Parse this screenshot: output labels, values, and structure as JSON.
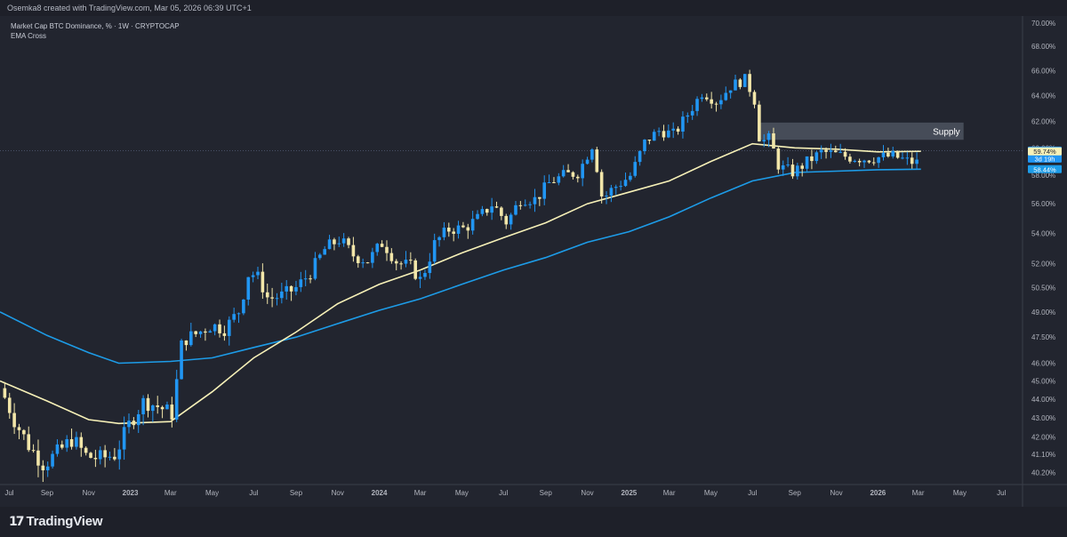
{
  "credit": "Osemka8 created with TradingView.com, Mar 05, 2026 06:39 UTC+1",
  "legend": {
    "symbol": "Market Cap BTC Dominance, % · 1W · CRYPTOCAP",
    "indicator": "EMA Cross"
  },
  "brand": {
    "logo_text": "TradingView"
  },
  "colors": {
    "background": "#22252f",
    "up_candle": "#2196f3",
    "down_candle": "#f2e6a9",
    "ema_fast": "#f7f1b8",
    "ema_slow": "#1d9ce8",
    "supply_zone": "#8a94a6"
  },
  "chart_data": {
    "type": "candlestick",
    "title": "Market Cap BTC Dominance, % · 1W · CRYPTOCAP",
    "indicator": "EMA Cross",
    "y_scale": "log",
    "ylim": [
      39.6,
      70.6
    ],
    "y_ticks": [
      "70.00%",
      "68.00%",
      "66.00%",
      "64.00%",
      "62.00%",
      "60.00%",
      "58.00%",
      "56.00%",
      "54.00%",
      "52.00%",
      "50.50%",
      "49.00%",
      "47.50%",
      "46.00%",
      "45.00%",
      "44.00%",
      "43.00%",
      "42.00%",
      "41.10%",
      "40.20%"
    ],
    "x_ticks": [
      {
        "label": "Jul",
        "date": "2022-07-01"
      },
      {
        "label": "Sep",
        "date": "2022-09-01"
      },
      {
        "label": "Nov",
        "date": "2022-11-01"
      },
      {
        "label": "2023",
        "date": "2023-01-01"
      },
      {
        "label": "Mar",
        "date": "2023-03-01"
      },
      {
        "label": "May",
        "date": "2023-05-01"
      },
      {
        "label": "Jul",
        "date": "2023-07-01"
      },
      {
        "label": "Sep",
        "date": "2023-09-01"
      },
      {
        "label": "Nov",
        "date": "2023-11-01"
      },
      {
        "label": "2024",
        "date": "2024-01-01"
      },
      {
        "label": "Mar",
        "date": "2024-03-01"
      },
      {
        "label": "May",
        "date": "2024-05-01"
      },
      {
        "label": "Jul",
        "date": "2024-07-01"
      },
      {
        "label": "Sep",
        "date": "2024-09-01"
      },
      {
        "label": "Nov",
        "date": "2024-11-01"
      },
      {
        "label": "2025",
        "date": "2025-01-01"
      },
      {
        "label": "Mar",
        "date": "2025-03-01"
      },
      {
        "label": "May",
        "date": "2025-05-01"
      },
      {
        "label": "Jul",
        "date": "2025-07-01"
      },
      {
        "label": "Sep",
        "date": "2025-09-01"
      },
      {
        "label": "Nov",
        "date": "2025-11-01"
      },
      {
        "label": "2026",
        "date": "2026-01-01"
      },
      {
        "label": "Mar",
        "date": "2026-03-01"
      },
      {
        "label": "May",
        "date": "2026-05-01"
      },
      {
        "label": "Jul",
        "date": "2026-07-01"
      }
    ],
    "x_range": [
      "2022-06-24",
      "2026-08-01"
    ],
    "close_anchors": [
      [
        "2022-06-25",
        44.6
      ],
      [
        "2022-07-16",
        42.8
      ],
      [
        "2022-08-06",
        41.5
      ],
      [
        "2022-08-27",
        40.6
      ],
      [
        "2022-09-17",
        41.2
      ],
      [
        "2022-10-08",
        41.9
      ],
      [
        "2022-10-29",
        41.0
      ],
      [
        "2022-11-19",
        40.9
      ],
      [
        "2022-12-10",
        41.1
      ],
      [
        "2022-12-31",
        42.7
      ],
      [
        "2023-01-21",
        43.9
      ],
      [
        "2023-02-11",
        43.6
      ],
      [
        "2023-03-04",
        43.2
      ],
      [
        "2023-03-18",
        47.3
      ],
      [
        "2023-04-08",
        47.7
      ],
      [
        "2023-04-29",
        48.2
      ],
      [
        "2023-05-20",
        48.0
      ],
      [
        "2023-06-10",
        49.1
      ],
      [
        "2023-06-24",
        51.5
      ],
      [
        "2023-07-08",
        51.1
      ],
      [
        "2023-07-22",
        49.8
      ],
      [
        "2023-08-12",
        50.0
      ],
      [
        "2023-09-02",
        50.5
      ],
      [
        "2023-09-23",
        51.5
      ],
      [
        "2023-10-14",
        53.0
      ],
      [
        "2023-11-04",
        53.6
      ],
      [
        "2023-11-25",
        52.5
      ],
      [
        "2023-12-16",
        52.2
      ],
      [
        "2024-01-06",
        53.4
      ],
      [
        "2024-01-27",
        52.1
      ],
      [
        "2024-02-17",
        51.8
      ],
      [
        "2024-03-02",
        50.9
      ],
      [
        "2024-03-23",
        53.4
      ],
      [
        "2024-04-13",
        54.3
      ],
      [
        "2024-05-04",
        54.3
      ],
      [
        "2024-05-25",
        55.0
      ],
      [
        "2024-06-15",
        56.0
      ],
      [
        "2024-07-06",
        54.7
      ],
      [
        "2024-07-27",
        56.4
      ],
      [
        "2024-08-17",
        56.3
      ],
      [
        "2024-09-07",
        57.5
      ],
      [
        "2024-09-28",
        58.0
      ],
      [
        "2024-10-19",
        58.2
      ],
      [
        "2024-11-09",
        60.3
      ],
      [
        "2024-11-23",
        56.3
      ],
      [
        "2024-12-07",
        57.0
      ],
      [
        "2025-01-04",
        58.0
      ],
      [
        "2025-01-25",
        60.5
      ],
      [
        "2025-02-15",
        61.3
      ],
      [
        "2025-03-08",
        61.0
      ],
      [
        "2025-03-29",
        62.6
      ],
      [
        "2025-04-19",
        64.3
      ],
      [
        "2025-05-10",
        63.5
      ],
      [
        "2025-05-31",
        64.8
      ],
      [
        "2025-06-21",
        65.3
      ],
      [
        "2025-07-05",
        63.5
      ],
      [
        "2025-07-12",
        60.4
      ],
      [
        "2025-07-26",
        60.7
      ],
      [
        "2025-08-09",
        58.6
      ],
      [
        "2025-08-30",
        58.2
      ],
      [
        "2025-09-20",
        59.0
      ],
      [
        "2025-10-11",
        59.7
      ],
      [
        "2025-11-01",
        59.5
      ],
      [
        "2025-11-22",
        59.3
      ],
      [
        "2025-12-13",
        59.2
      ],
      [
        "2026-01-03",
        59.3
      ],
      [
        "2026-01-24",
        59.4
      ],
      [
        "2026-02-14",
        59.0
      ],
      [
        "2026-02-28",
        58.9
      ],
      [
        "2026-03-05",
        59.8
      ]
    ],
    "ema_fast": [
      [
        "2022-06-24",
        45.0
      ],
      [
        "2022-09-01",
        43.9
      ],
      [
        "2022-11-01",
        42.9
      ],
      [
        "2022-12-15",
        42.7
      ],
      [
        "2023-03-01",
        42.8
      ],
      [
        "2023-05-01",
        44.4
      ],
      [
        "2023-07-01",
        46.3
      ],
      [
        "2023-09-01",
        47.8
      ],
      [
        "2023-11-01",
        49.5
      ],
      [
        "2024-01-01",
        50.7
      ],
      [
        "2024-03-01",
        51.6
      ],
      [
        "2024-05-01",
        52.7
      ],
      [
        "2024-07-01",
        53.7
      ],
      [
        "2024-09-01",
        54.7
      ],
      [
        "2024-11-01",
        56.0
      ],
      [
        "2025-01-01",
        56.8
      ],
      [
        "2025-03-01",
        57.6
      ],
      [
        "2025-05-01",
        59.0
      ],
      [
        "2025-07-01",
        60.3
      ],
      [
        "2025-09-01",
        60.0
      ],
      [
        "2025-11-01",
        59.9
      ],
      [
        "2026-01-01",
        59.7
      ],
      [
        "2026-03-05",
        59.74
      ]
    ],
    "ema_slow": [
      [
        "2022-06-24",
        49.0
      ],
      [
        "2022-09-01",
        47.6
      ],
      [
        "2022-11-01",
        46.6
      ],
      [
        "2022-12-15",
        46.0
      ],
      [
        "2023-03-01",
        46.1
      ],
      [
        "2023-05-01",
        46.3
      ],
      [
        "2023-07-01",
        46.9
      ],
      [
        "2023-09-01",
        47.5
      ],
      [
        "2023-11-01",
        48.3
      ],
      [
        "2024-01-01",
        49.1
      ],
      [
        "2024-03-01",
        49.8
      ],
      [
        "2024-05-01",
        50.7
      ],
      [
        "2024-07-01",
        51.6
      ],
      [
        "2024-09-01",
        52.4
      ],
      [
        "2024-11-01",
        53.4
      ],
      [
        "2025-01-01",
        54.1
      ],
      [
        "2025-03-01",
        55.1
      ],
      [
        "2025-05-01",
        56.4
      ],
      [
        "2025-07-01",
        57.6
      ],
      [
        "2025-09-01",
        58.2
      ],
      [
        "2025-11-01",
        58.3
      ],
      [
        "2026-01-01",
        58.4
      ],
      [
        "2026-03-05",
        58.44
      ]
    ],
    "annotations": [
      {
        "type": "rectangle",
        "label": "Supply",
        "x": [
          "2025-07-12",
          "2026-03-05"
        ],
        "y": [
          60.6,
          61.9
        ]
      }
    ],
    "price_labels": [
      {
        "text": "59.80%",
        "value": 59.8,
        "color": "#2196f3"
      },
      {
        "text": "3d 19h",
        "value": 59.8,
        "color": "#2196f3",
        "role": "countdown"
      },
      {
        "text": "59.74%",
        "value": 59.74,
        "color": "#f7f1b8"
      },
      {
        "text": "58.44%",
        "value": 58.44,
        "color": "#1d9ce8"
      }
    ],
    "last_price_line": 59.8,
    "grid": false,
    "legend_position": "top-left"
  }
}
